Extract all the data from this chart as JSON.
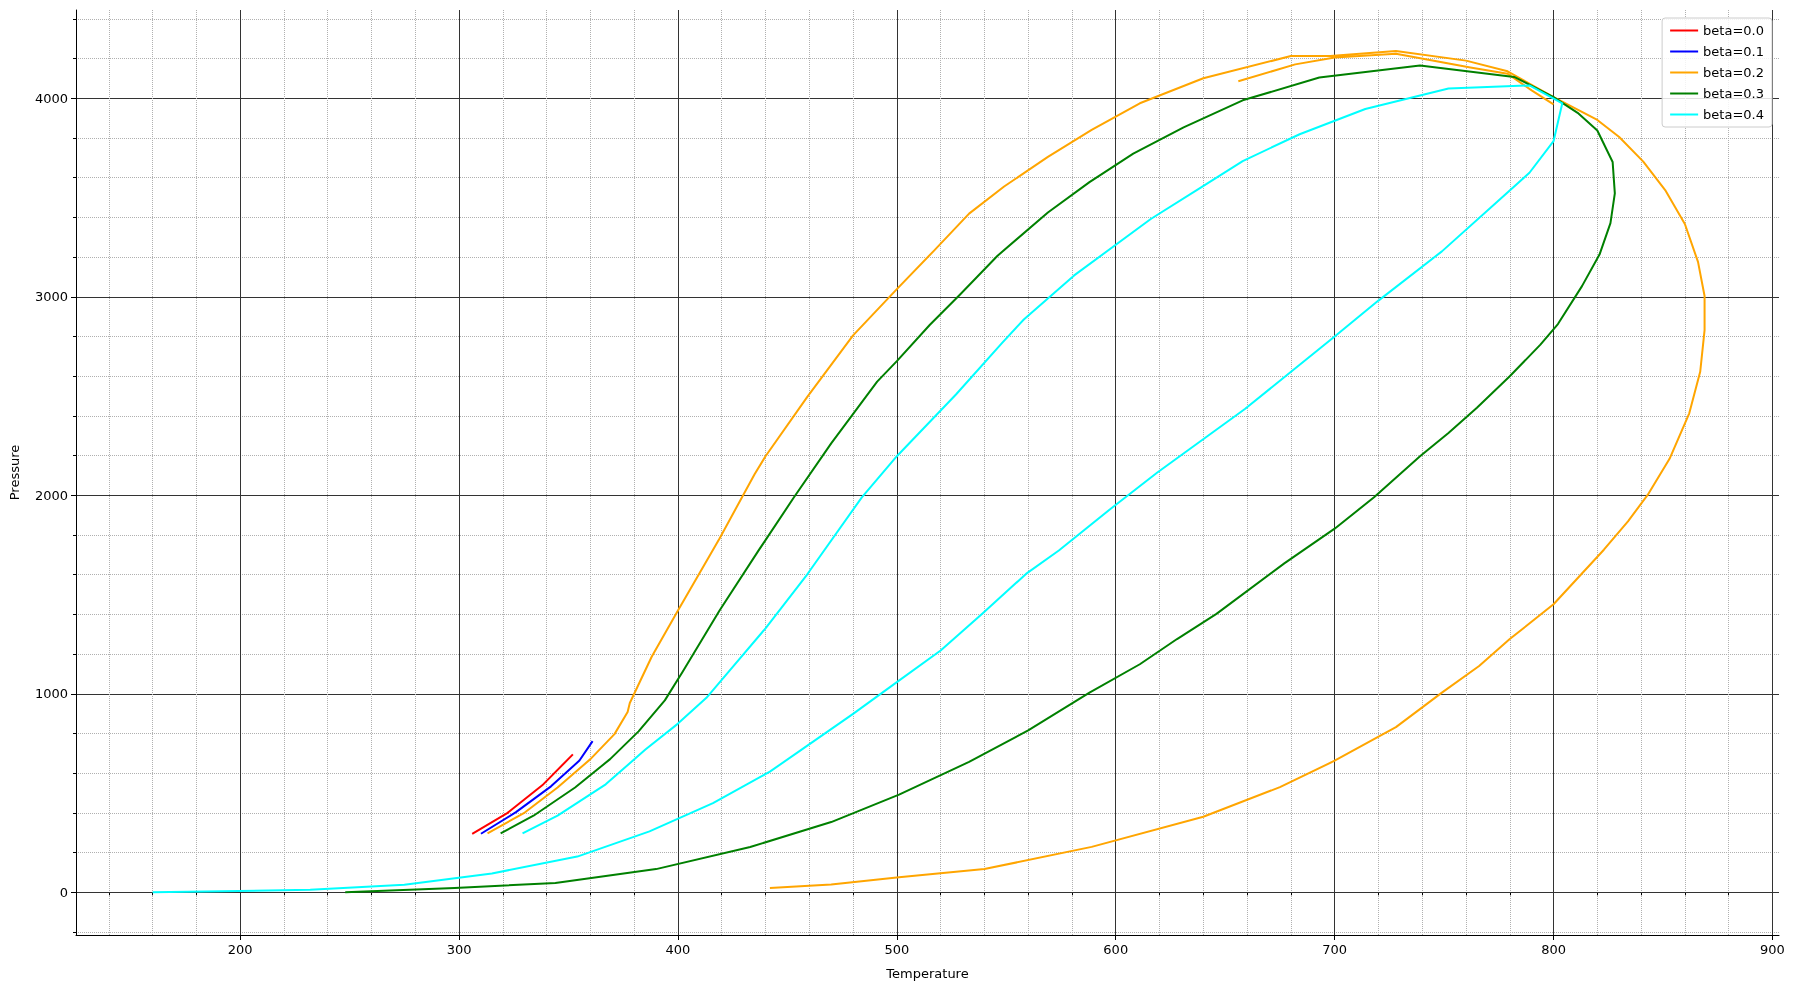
{
  "chart_data": {
    "type": "line",
    "xlabel": "Temperature",
    "ylabel": "Pressure",
    "xlim": [
      125,
      903
    ],
    "ylim": [
      -215,
      4445
    ],
    "xticks": [
      {
        "value": 140,
        "label": null
      },
      {
        "value": 160,
        "label": null
      },
      {
        "value": 180,
        "label": null
      },
      200,
      {
        "value": 220,
        "label": null
      },
      {
        "value": 240,
        "label": null
      },
      {
        "value": 260,
        "label": null
      },
      {
        "value": 280,
        "label": null
      },
      300,
      {
        "value": 320,
        "label": null
      },
      {
        "value": 340,
        "label": null
      },
      {
        "value": 360,
        "label": null
      },
      {
        "value": 380,
        "label": null
      },
      400,
      {
        "value": 420,
        "label": null
      },
      {
        "value": 440,
        "label": null
      },
      {
        "value": 460,
        "label": null
      },
      {
        "value": 480,
        "label": null
      },
      500,
      {
        "value": 520,
        "label": null
      },
      {
        "value": 540,
        "label": null
      },
      {
        "value": 560,
        "label": null
      },
      {
        "value": 580,
        "label": null
      },
      600,
      {
        "value": 620,
        "label": null
      },
      {
        "value": 640,
        "label": null
      },
      {
        "value": 660,
        "label": null
      },
      {
        "value": 680,
        "label": null
      },
      700,
      {
        "value": 720,
        "label": null
      },
      {
        "value": 740,
        "label": null
      },
      {
        "value": 760,
        "label": null
      },
      {
        "value": 780,
        "label": null
      },
      800,
      {
        "value": 820,
        "label": null
      },
      {
        "value": 840,
        "label": null
      },
      {
        "value": 860,
        "label": null
      },
      {
        "value": 880,
        "label": null
      },
      900
    ],
    "yticks": [
      {
        "value": -200,
        "label": null
      },
      0,
      {
        "value": 200,
        "label": null
      },
      {
        "value": 400,
        "label": null
      },
      {
        "value": 600,
        "label": null
      },
      {
        "value": 800,
        "label": null
      },
      1000,
      {
        "value": 1200,
        "label": null
      },
      {
        "value": 1400,
        "label": null
      },
      {
        "value": 1600,
        "label": null
      },
      {
        "value": 1800,
        "label": null
      },
      2000,
      {
        "value": 2200,
        "label": null
      },
      {
        "value": 2400,
        "label": null
      },
      {
        "value": 2600,
        "label": null
      },
      {
        "value": 2800,
        "label": null
      },
      3000,
      {
        "value": 3200,
        "label": null
      },
      {
        "value": 3400,
        "label": null
      },
      {
        "value": 3600,
        "label": null
      },
      {
        "value": 3800,
        "label": null
      },
      4000,
      {
        "value": 4200,
        "label": null
      },
      {
        "value": 4400,
        "label": null
      }
    ],
    "grid": true,
    "legend": "top right",
    "marker": "none",
    "line_style": "solid",
    "series": [
      {
        "name": "beta=0.0",
        "color": "#ff0000",
        "x": [
          306,
          322,
          338,
          352
        ],
        "values": [
          295,
          399,
          539,
          695
        ]
      },
      {
        "name": "beta=0.1",
        "color": "#0000ff",
        "x": [
          310,
          326,
          342,
          355,
          361
        ],
        "values": [
          295,
          404,
          534,
          664,
          762
        ]
      },
      {
        "name": "beta=0.2",
        "color": "#ffa500",
        "x": [
          313,
          330,
          345,
          360,
          371,
          377,
          378,
          388,
          400,
          419,
          435,
          440,
          459,
          480,
          500,
          517,
          533,
          549,
          569,
          589,
          611,
          640,
          680,
          698,
          728,
          760,
          779,
          800,
          820,
          830,
          841,
          851,
          860,
          866,
          869,
          869,
          867,
          862,
          853,
          843,
          834,
          823,
          800,
          780,
          766,
          749,
          728,
          700,
          675,
          640,
          589,
          540,
          501,
          470,
          442,
          null,
          656,
          682,
          700,
          728,
          762,
          779,
          790,
          800
        ],
        "values": [
          297,
          402,
          528,
          671,
          797,
          908,
          954,
          1187,
          1420,
          1783,
          2106,
          2197,
          2495,
          2806,
          3039,
          3233,
          3419,
          3556,
          3705,
          3841,
          3975,
          4101,
          4213,
          4213,
          4238,
          4190,
          4136,
          4006,
          3891,
          3805,
          3681,
          3538,
          3367,
          3176,
          3004,
          2832,
          2622,
          2413,
          2184,
          2002,
          1869,
          1726,
          1451,
          1276,
          1140,
          1006,
          832,
          663,
          530,
          381,
          229,
          117,
          76,
          40,
          22,
          null,
          4086,
          4171,
          4206,
          4225,
          4155,
          4124,
          4040,
          3970
        ]
      },
      {
        "name": "beta=0.3",
        "color": "#008000",
        "x": [
          319,
          334,
          353,
          369,
          382,
          394,
          402,
          419,
          437,
          453,
          470,
          491,
          500,
          515,
          529,
          546,
          569,
          588,
          608,
          631,
          658,
          693,
          739,
          782,
          800,
          811,
          820,
          827,
          828,
          826,
          821,
          813,
          802,
          794,
          780,
          765,
          752,
          739,
          718,
          700,
          677,
          646,
          628,
          611,
          588,
          560,
          533,
          501,
          470,
          433,
          390,
          344,
          298,
          248
        ],
        "values": [
          297,
          386,
          528,
          671,
          811,
          967,
          1109,
          1420,
          1725,
          1990,
          2262,
          2573,
          2676,
          2858,
          3013,
          3207,
          3425,
          3578,
          3721,
          3854,
          3990,
          4105,
          4165,
          4108,
          4006,
          3927,
          3838,
          3679,
          3521,
          3371,
          3213,
          3054,
          2863,
          2759,
          2600,
          2441,
          2314,
          2197,
          1990,
          1832,
          1657,
          1403,
          1276,
          1149,
          1006,
          816,
          657,
          492,
          354,
          228,
          117,
          47,
          22,
          0
        ]
      },
      {
        "name": "beta=0.4",
        "color": "#00ffff",
        "x": [
          329,
          345,
          367,
          385,
          400,
          413,
          423,
          440,
          459,
          484,
          500,
          527,
          548,
          558,
          581,
          616,
          639,
          658,
          684,
          714,
          752,
          789,
          804,
          800,
          789,
          773,
          749,
          720,
          700,
          659,
          619,
          598,
          574,
          559,
          539,
          520,
          500,
          480,
          456,
          442,
          416,
          387,
          354,
          315,
          275,
          232,
          160
        ],
        "values": [
          297,
          386,
          544,
          718,
          850,
          980,
          1109,
          1330,
          1601,
          1990,
          2197,
          2508,
          2767,
          2886,
          3108,
          3392,
          3551,
          3684,
          3819,
          3946,
          4050,
          4065,
          3975,
          3784,
          3625,
          3467,
          3229,
          2981,
          2800,
          2435,
          2115,
          1935,
          1722,
          1604,
          1403,
          1218,
          1059,
          899,
          715,
          608,
          449,
          307,
          180,
          95,
          38,
          13,
          0
        ]
      }
    ]
  }
}
